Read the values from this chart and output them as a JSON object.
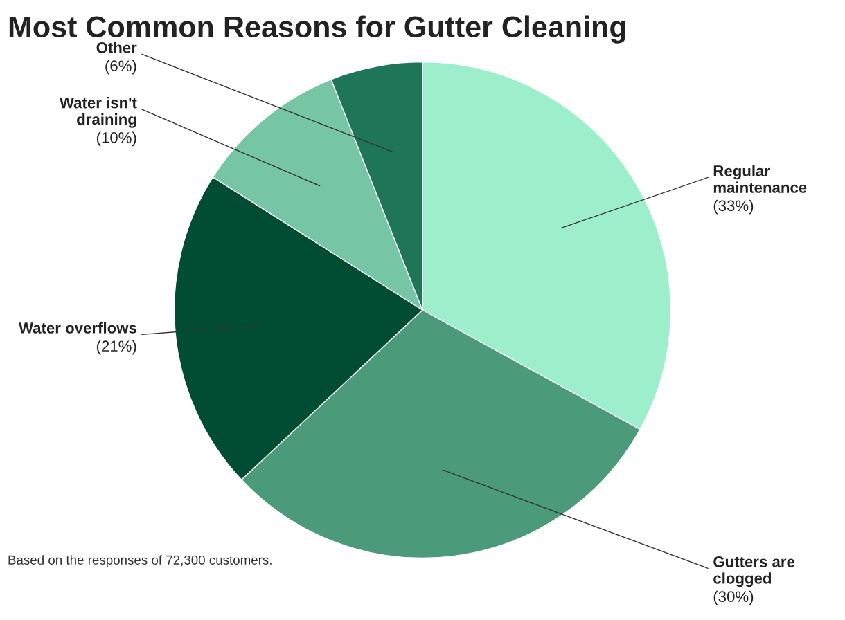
{
  "chart_data": {
    "type": "pie",
    "title": "Most Common Reasons for Gutter Cleaning",
    "categories": [
      "Regular maintenance",
      "Gutters are clogged",
      "Water overflows",
      "Water isn't draining",
      "Other"
    ],
    "values": [
      33,
      30,
      21,
      10,
      6
    ],
    "value_labels": [
      "(33%)",
      "(30%)",
      "(21%)",
      "(10%)",
      "(6%)"
    ],
    "colors": [
      "#9deecb",
      "#4b9b7b",
      "#004d33",
      "#76c5a5",
      "#1f7558"
    ],
    "annotations": [
      "Based on the responses of 72,300 customers."
    ],
    "legend": false
  }
}
